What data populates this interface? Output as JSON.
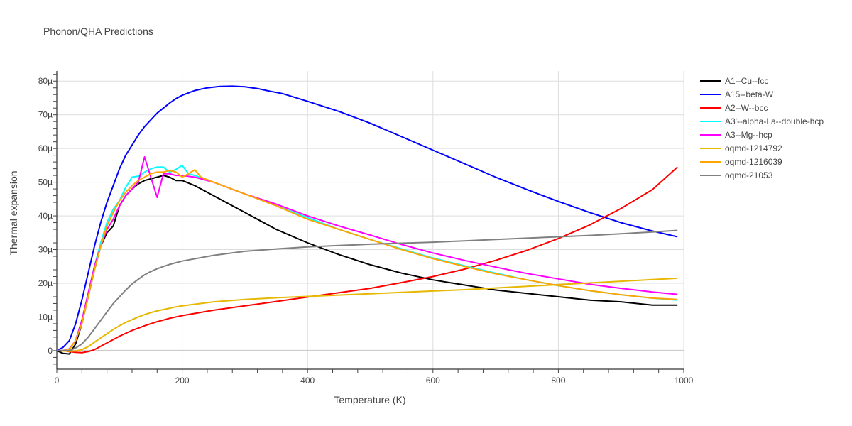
{
  "chart_data": {
    "type": "line",
    "title": "Phonon/QHA Predictions",
    "xlabel": "Temperature (K)",
    "ylabel": "Thermal expansion",
    "xlim": [
      0,
      1000
    ],
    "ylim": [
      -5.5,
      83
    ],
    "x_ticks": [
      0,
      200,
      400,
      600,
      800,
      1000
    ],
    "y_ticks": [
      0,
      10,
      20,
      30,
      40,
      50,
      60,
      70,
      80
    ],
    "y_tick_labels": [
      "0",
      "10µ",
      "20µ",
      "30µ",
      "40µ",
      "50µ",
      "60µ",
      "70µ",
      "80µ"
    ],
    "grid": true,
    "legend_position": "right",
    "series": [
      {
        "name": "A1--Cu--fcc",
        "color": "#000000",
        "x": [
          0,
          10,
          20,
          30,
          40,
          50,
          60,
          70,
          80,
          90,
          100,
          110,
          120,
          130,
          140,
          150,
          160,
          170,
          180,
          190,
          200,
          220,
          250,
          300,
          350,
          400,
          450,
          500,
          550,
          600,
          650,
          700,
          750,
          800,
          850,
          900,
          950,
          990
        ],
        "y": [
          0,
          -0.8,
          -1,
          2,
          8,
          16,
          24,
          31,
          35,
          37,
          43,
          46,
          48,
          49.5,
          50.5,
          51,
          51.5,
          52,
          51.5,
          50.5,
          50.5,
          49,
          46,
          41,
          36,
          32,
          28.5,
          25.5,
          23,
          21,
          19.5,
          18,
          17,
          16,
          15,
          14.5,
          13.5,
          13.5
        ]
      },
      {
        "name": "A15--beta-W",
        "color": "#0000ff",
        "x": [
          0,
          10,
          20,
          30,
          40,
          50,
          60,
          70,
          80,
          90,
          100,
          110,
          120,
          130,
          140,
          150,
          160,
          170,
          180,
          190,
          200,
          220,
          240,
          260,
          280,
          300,
          320,
          340,
          360,
          400,
          450,
          500,
          550,
          600,
          650,
          700,
          750,
          800,
          850,
          900,
          950,
          990
        ],
        "y": [
          0,
          1,
          3,
          8,
          15,
          23,
          31,
          38,
          44,
          49,
          54,
          58,
          61,
          64,
          66.5,
          68.5,
          70.5,
          72,
          73.5,
          74.8,
          75.8,
          77.2,
          78,
          78.4,
          78.5,
          78.3,
          77.8,
          77,
          76.3,
          74,
          71,
          67.5,
          63.5,
          59.5,
          55.5,
          51.5,
          47.8,
          44.3,
          41,
          38,
          35.5,
          33.8
        ]
      },
      {
        "name": "A2--W--bcc",
        "color": "#ff0000",
        "x": [
          0,
          10,
          20,
          30,
          40,
          50,
          60,
          70,
          80,
          90,
          100,
          120,
          140,
          160,
          180,
          200,
          250,
          300,
          350,
          400,
          450,
          500,
          550,
          600,
          650,
          700,
          750,
          800,
          850,
          900,
          950,
          990
        ],
        "y": [
          0,
          0,
          -0.3,
          -0.5,
          -0.6,
          -0.3,
          0.3,
          1.3,
          2.3,
          3.3,
          4.3,
          6,
          7.4,
          8.6,
          9.6,
          10.4,
          12,
          13.3,
          14.6,
          15.9,
          17.2,
          18.5,
          20.2,
          22,
          24.2,
          26.8,
          29.8,
          33.3,
          37.3,
          42.2,
          47.8,
          54.5
        ]
      },
      {
        "name": "A3'--alpha-La--double-hcp",
        "color": "#00ffff",
        "x": [
          0,
          10,
          20,
          30,
          40,
          50,
          60,
          70,
          80,
          90,
          100,
          110,
          120,
          130,
          140,
          150,
          160,
          170,
          180,
          190,
          200,
          210,
          220,
          250,
          300,
          350,
          400,
          450,
          500,
          550,
          600,
          650,
          700,
          750,
          800,
          850,
          900,
          950,
          990
        ],
        "y": [
          0,
          0,
          0.5,
          3,
          9,
          17,
          25,
          32,
          38,
          42,
          44.5,
          48.5,
          51.5,
          51.8,
          53,
          54,
          54.5,
          54.5,
          53,
          53.8,
          55,
          52.5,
          52,
          50,
          46.5,
          43,
          39.5,
          36,
          33,
          30.2,
          27.5,
          25.2,
          23,
          21,
          19.3,
          17.8,
          16.6,
          15.6,
          15
        ]
      },
      {
        "name": "A3--Mg--hcp",
        "color": "#ff00ff",
        "x": [
          0,
          10,
          20,
          30,
          40,
          50,
          60,
          70,
          80,
          90,
          100,
          110,
          120,
          130,
          140,
          150,
          160,
          170,
          180,
          190,
          200,
          220,
          250,
          300,
          350,
          400,
          450,
          500,
          550,
          600,
          650,
          700,
          750,
          800,
          850,
          900,
          950,
          990
        ],
        "y": [
          0,
          0,
          0.5,
          3,
          9,
          17,
          25,
          31,
          36,
          39,
          43,
          46,
          48,
          50,
          57.5,
          51.5,
          45.5,
          52.5,
          52.5,
          52,
          52,
          51.5,
          50,
          46.5,
          43.5,
          40,
          37,
          34.3,
          31.5,
          29,
          26.8,
          24.8,
          22.9,
          21.3,
          19.7,
          18.5,
          17.4,
          16.7
        ]
      },
      {
        "name": "oqmd-1214792",
        "color": "#e6b800",
        "x": [
          0,
          10,
          20,
          30,
          40,
          50,
          60,
          70,
          80,
          90,
          100,
          110,
          120,
          130,
          140,
          150,
          160,
          170,
          180,
          190,
          200,
          250,
          300,
          350,
          400,
          450,
          500,
          550,
          600,
          650,
          700,
          750,
          800,
          850,
          900,
          950,
          990
        ],
        "y": [
          0,
          -0.1,
          -0.2,
          -0.1,
          0.3,
          1.2,
          2.5,
          3.8,
          5,
          6.3,
          7.4,
          8.4,
          9.2,
          10,
          10.7,
          11.3,
          11.8,
          12.2,
          12.6,
          13,
          13.3,
          14.5,
          15.2,
          15.7,
          16.1,
          16.5,
          16.9,
          17.3,
          17.7,
          18.1,
          18.6,
          19.1,
          19.6,
          20.1,
          20.6,
          21.1,
          21.5
        ]
      },
      {
        "name": "oqmd-1216039",
        "color": "#ffa500",
        "x": [
          0,
          10,
          20,
          30,
          40,
          50,
          60,
          70,
          80,
          90,
          100,
          110,
          120,
          130,
          140,
          150,
          160,
          170,
          180,
          190,
          200,
          210,
          220,
          230,
          250,
          300,
          350,
          400,
          450,
          500,
          550,
          600,
          650,
          700,
          750,
          800,
          850,
          900,
          950,
          990
        ],
        "y": [
          0,
          0,
          0.3,
          3,
          8,
          16,
          24,
          31,
          37,
          41,
          44.5,
          47,
          49,
          50.5,
          51.5,
          52.5,
          53,
          53,
          53.5,
          53,
          51.5,
          52.5,
          53.7,
          51.5,
          50,
          46.5,
          43,
          39,
          36,
          33,
          30,
          27.3,
          25,
          22.8,
          21,
          19.3,
          17.8,
          16.6,
          15.6,
          15.2
        ]
      },
      {
        "name": "oqmd-21053",
        "color": "#808080",
        "x": [
          0,
          10,
          20,
          30,
          40,
          50,
          60,
          70,
          80,
          90,
          100,
          110,
          120,
          130,
          140,
          150,
          160,
          170,
          180,
          190,
          200,
          250,
          300,
          350,
          400,
          450,
          500,
          550,
          600,
          650,
          700,
          750,
          800,
          850,
          900,
          950,
          990
        ],
        "y": [
          0,
          0,
          0,
          0.8,
          2,
          4,
          6.5,
          9,
          11.5,
          14,
          16,
          18,
          19.8,
          21.2,
          22.5,
          23.5,
          24.3,
          25,
          25.6,
          26.1,
          26.6,
          28.3,
          29.5,
          30.2,
          30.8,
          31.2,
          31.6,
          31.9,
          32.2,
          32.6,
          33,
          33.4,
          33.8,
          34.2,
          34.7,
          35.2,
          35.7
        ]
      }
    ]
  }
}
